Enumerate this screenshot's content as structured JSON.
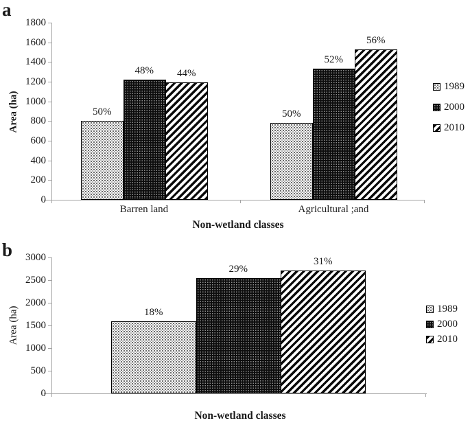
{
  "figure": {
    "panel_count": 2,
    "text_color": "#1a1a1a",
    "axis_color": "#a3a3a3",
    "bar_outline_color": "#000000"
  },
  "chart_data": [
    {
      "panel_label": "a",
      "type": "bar",
      "title": "",
      "xlabel": "Non-wetland classes",
      "ylabel": "Area (ha)",
      "ylim": [
        0,
        1800
      ],
      "ytick_step": 200,
      "grid": false,
      "legend_position": "right",
      "legend": [
        "1989",
        "2000",
        "2010"
      ],
      "categories": [
        "Barren land",
        "Agricultural ;and"
      ],
      "series": [
        {
          "name": "1989",
          "pattern": "dotted-white",
          "values": [
            800,
            785
          ],
          "point_labels": [
            "50%",
            "50%"
          ]
        },
        {
          "name": "2000",
          "pattern": "dotted-black",
          "values": [
            1220,
            1335
          ],
          "point_labels": [
            "48%",
            "52%"
          ]
        },
        {
          "name": "2010",
          "pattern": "diagonal-stripes",
          "values": [
            1190,
            1530
          ],
          "point_labels": [
            "44%",
            "56%"
          ]
        }
      ]
    },
    {
      "panel_label": "b",
      "type": "bar",
      "title": "",
      "xlabel": "Non-wetland classes",
      "ylabel": "Area (ha)",
      "ylim": [
        0,
        3000
      ],
      "ytick_step": 500,
      "grid": false,
      "legend_position": "right",
      "legend": [
        "1989",
        "2000",
        "2010"
      ],
      "categories": [
        ""
      ],
      "series": [
        {
          "name": "1989",
          "pattern": "dotted-white",
          "values": [
            1590
          ],
          "point_labels": [
            "18%"
          ]
        },
        {
          "name": "2000",
          "pattern": "dotted-black",
          "values": [
            2550
          ],
          "point_labels": [
            "29%"
          ]
        },
        {
          "name": "2010",
          "pattern": "diagonal-stripes",
          "values": [
            2720
          ],
          "point_labels": [
            "31%"
          ]
        }
      ]
    }
  ]
}
